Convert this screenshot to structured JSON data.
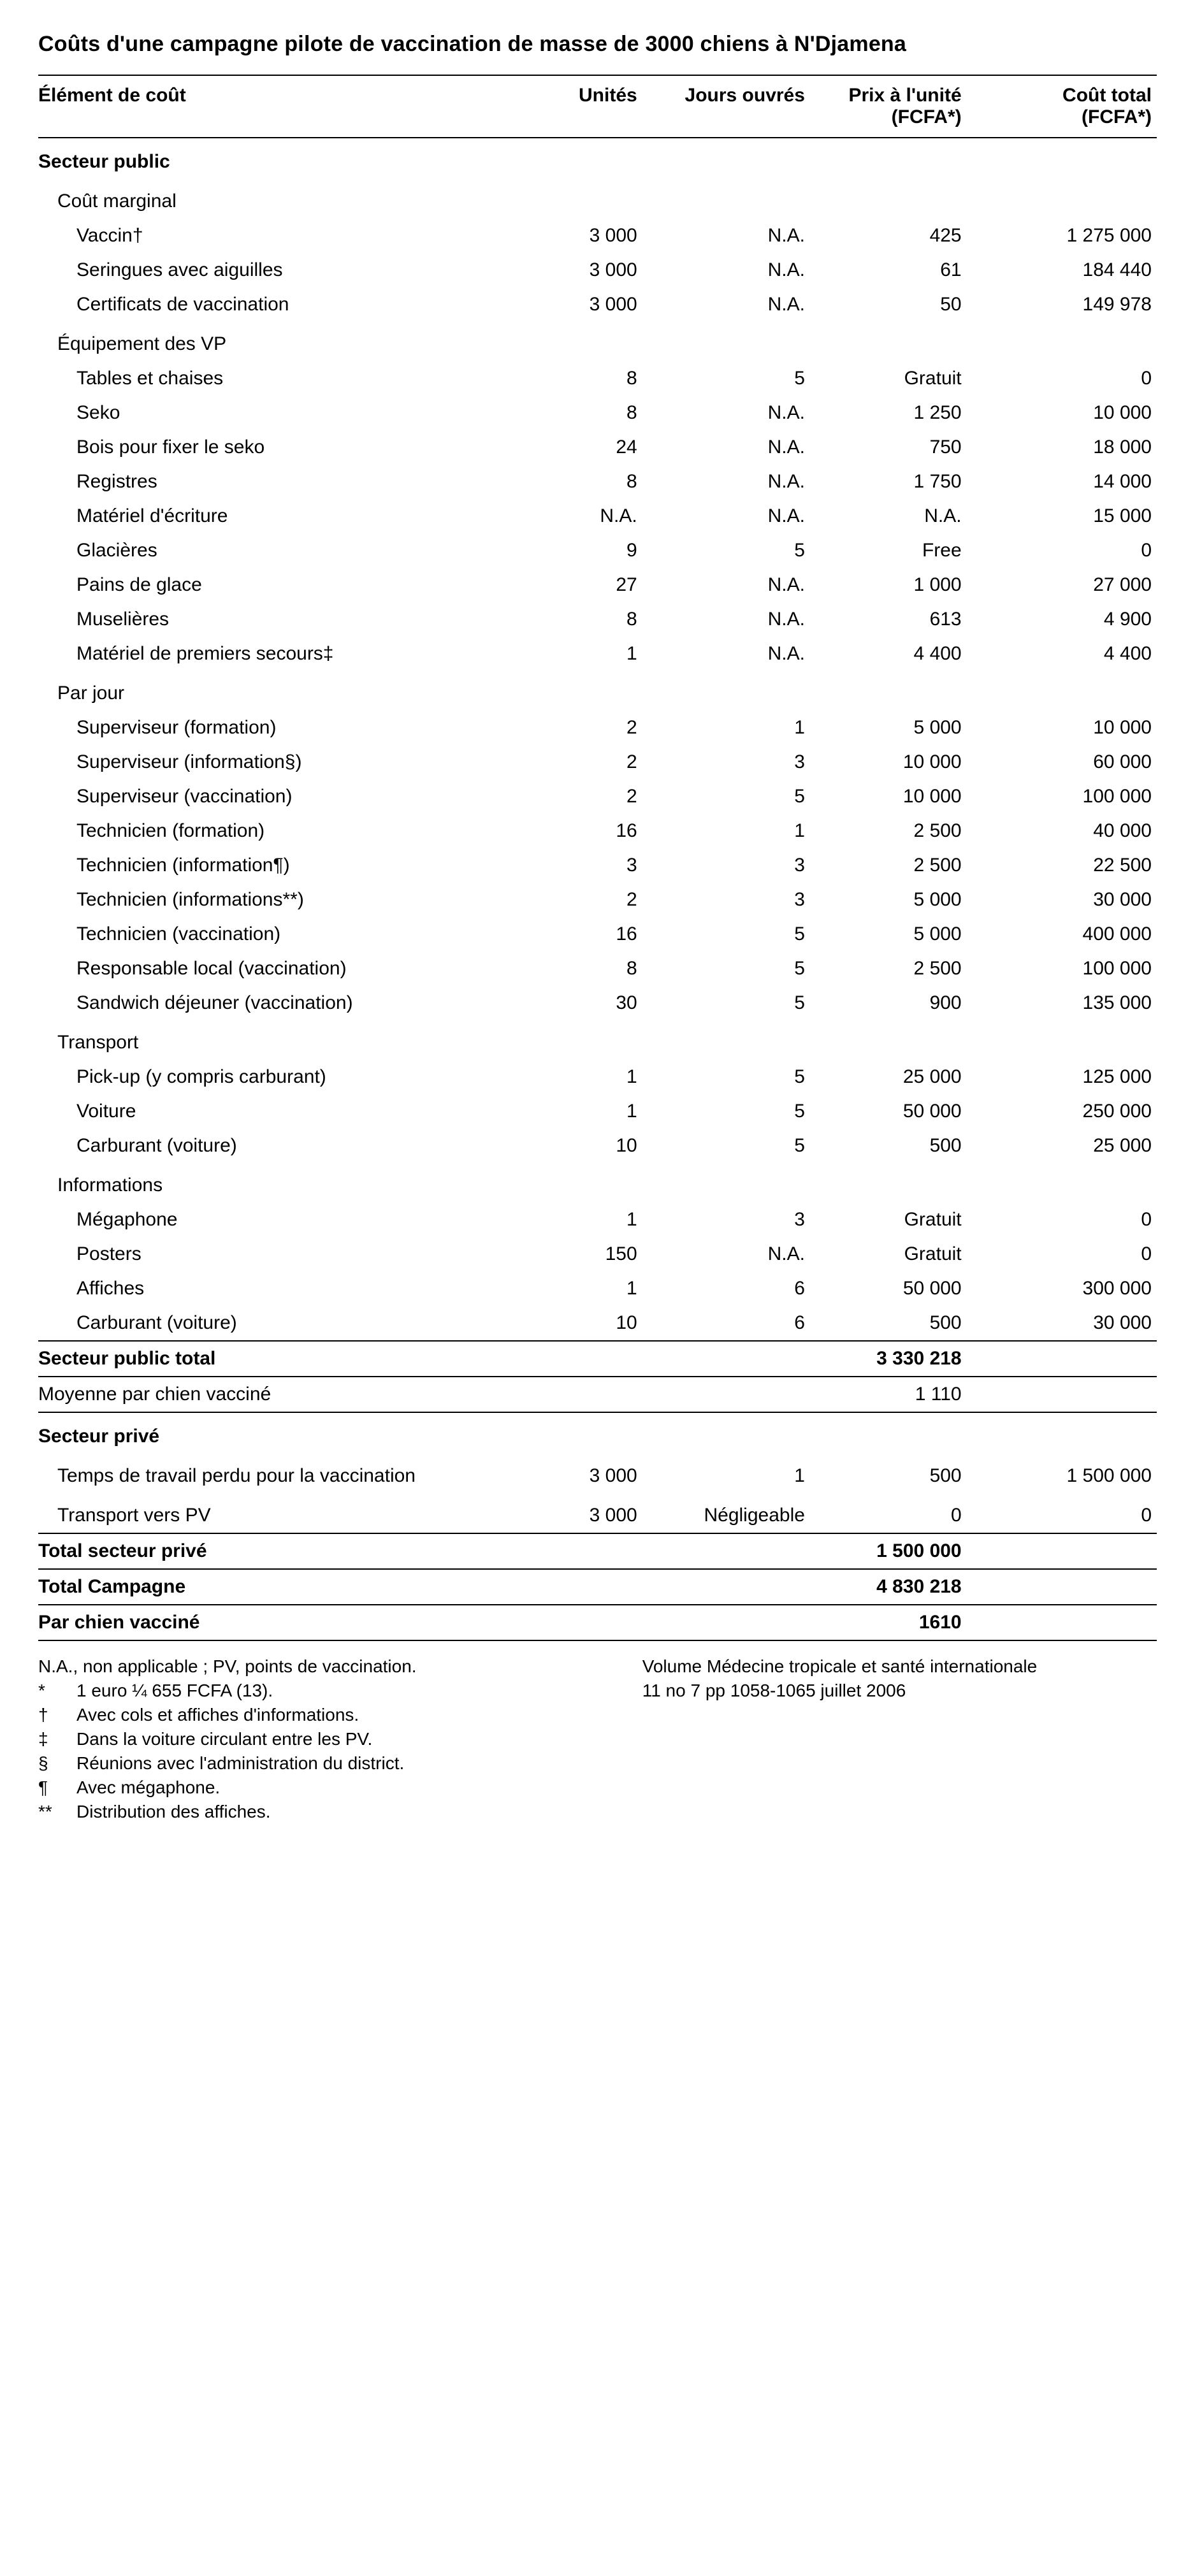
{
  "title": "Coûts d'une campagne pilote de vaccination de masse de 3000 chiens à N'Djamena",
  "headers": {
    "element": "Élément de coût",
    "units": "Unités",
    "days": "Jours ouvrés",
    "price1": "Prix à l'unité",
    "price2": "(FCFA*)",
    "total1": "Coût total",
    "total2": "(FCFA*)"
  },
  "rows": [
    {
      "type": "section",
      "label": "Secteur public"
    },
    {
      "type": "group",
      "label": "Coût marginal"
    },
    {
      "type": "item",
      "label": "Vaccin†",
      "units": "3 000",
      "days": "N.A.",
      "price": "425",
      "total": "1 275 000"
    },
    {
      "type": "item",
      "label": "Seringues avec aiguilles",
      "units": "3 000",
      "days": "N.A.",
      "price": "61",
      "total": "184 440"
    },
    {
      "type": "item",
      "label": "Certificats de vaccination",
      "units": "3 000",
      "days": "N.A.",
      "price": "50",
      "total": "149 978"
    },
    {
      "type": "group",
      "label": "Équipement des VP"
    },
    {
      "type": "item",
      "label": "Tables et chaises",
      "units": "8",
      "days": "5",
      "price": "Gratuit",
      "total": "0"
    },
    {
      "type": "item",
      "label": "Seko",
      "units": "8",
      "days": "N.A.",
      "price": "1 250",
      "total": "10 000"
    },
    {
      "type": "item",
      "label": "Bois pour fixer le seko",
      "units": "24",
      "days": "N.A.",
      "price": "750",
      "total": "18 000"
    },
    {
      "type": "item",
      "label": "Registres",
      "units": "8",
      "days": "N.A.",
      "price": "1 750",
      "total": "14 000"
    },
    {
      "type": "item",
      "label": "Matériel d'écriture",
      "units": "N.A.",
      "days": "N.A.",
      "price": "N.A.",
      "total": "15 000"
    },
    {
      "type": "item",
      "label": "Glacières",
      "units": "9",
      "days": "5",
      "price": "Free",
      "total": "0"
    },
    {
      "type": "item",
      "label": "Pains de glace",
      "units": "27",
      "days": "N.A.",
      "price": "1 000",
      "total": "27 000"
    },
    {
      "type": "item",
      "label": "Muselières",
      "units": "8",
      "days": "N.A.",
      "price": "613",
      "total": "4 900"
    },
    {
      "type": "item",
      "label": "Matériel de premiers secours‡",
      "units": "1",
      "days": "N.A.",
      "price": "4 400",
      "total": "4 400"
    },
    {
      "type": "group",
      "label": "Par jour"
    },
    {
      "type": "item",
      "label": "Superviseur (formation)",
      "units": "2",
      "days": "1",
      "price": "5 000",
      "total": "10 000"
    },
    {
      "type": "item",
      "label": "Superviseur (information§)",
      "units": "2",
      "days": "3",
      "price": "10 000",
      "total": "60 000"
    },
    {
      "type": "item",
      "label": "Superviseur (vaccination)",
      "units": "2",
      "days": "5",
      "price": "10 000",
      "total": "100 000"
    },
    {
      "type": "item",
      "label": "Technicien (formation)",
      "units": "16",
      "days": "1",
      "price": "2 500",
      "total": "40 000"
    },
    {
      "type": "item",
      "label": "Technicien (information¶)",
      "units": "3",
      "days": "3",
      "price": "2 500",
      "total": "22 500"
    },
    {
      "type": "item",
      "label": "Technicien (informations**)",
      "units": "2",
      "days": "3",
      "price": "5 000",
      "total": "30 000"
    },
    {
      "type": "item",
      "label": "Technicien (vaccination)",
      "units": "16",
      "days": "5",
      "price": "5 000",
      "total": "400 000"
    },
    {
      "type": "item",
      "label": "Responsable local (vaccination)",
      "units": "8",
      "days": "5",
      "price": "2 500",
      "total": "100 000"
    },
    {
      "type": "item",
      "label": "Sandwich déjeuner (vaccination)",
      "units": "30",
      "days": "5",
      "price": "900",
      "total": "135 000"
    },
    {
      "type": "group",
      "label": "Transport"
    },
    {
      "type": "item",
      "label": "Pick-up (y compris carburant)",
      "units": "1",
      "days": "5",
      "price": "25 000",
      "total": "125 000"
    },
    {
      "type": "item",
      "label": "Voiture",
      "units": "1",
      "days": "5",
      "price": "50 000",
      "total": "250 000"
    },
    {
      "type": "item",
      "label": "Carburant (voiture)",
      "units": "10",
      "days": "5",
      "price": "500",
      "total": "25 000"
    },
    {
      "type": "group",
      "label": "Informations"
    },
    {
      "type": "item",
      "label": "Mégaphone",
      "units": "1",
      "days": "3",
      "price": "Gratuit",
      "total": "0"
    },
    {
      "type": "item",
      "label": "Posters",
      "units": "150",
      "days": "N.A.",
      "price": "Gratuit",
      "total": "0"
    },
    {
      "type": "item",
      "label": "Affiches",
      "units": "1",
      "days": "6",
      "price": "50 000",
      "total": "300 000"
    },
    {
      "type": "item",
      "label": "Carburant (voiture)",
      "units": "10",
      "days": "6",
      "price": "500",
      "total": "30 000"
    },
    {
      "type": "total",
      "label": "Secteur public total",
      "price": "3 330 218",
      "rule": "both"
    },
    {
      "type": "plain",
      "label": "Moyenne par chien vacciné",
      "price": "1 110",
      "rule": "bot"
    },
    {
      "type": "section",
      "label": "Secteur privé"
    },
    {
      "type": "itemL",
      "label": "Temps de travail perdu pour la vaccination",
      "units": "3 000",
      "days": "1",
      "price": "500",
      "total": "1 500 000"
    },
    {
      "type": "itemL",
      "label": "Transport vers PV",
      "units": "3 000",
      "days": "Négligeable",
      "price": "0",
      "total": "0"
    },
    {
      "type": "total",
      "label": "Total secteur privé",
      "price": "1 500 000",
      "rule": "both"
    },
    {
      "type": "total",
      "label": "Total Campagne",
      "price": "4 830 218",
      "rule": "bot"
    },
    {
      "type": "total",
      "label": "Par chien vacciné",
      "price": "1610",
      "rule": "bot"
    }
  ],
  "footnotes": {
    "lead": "N.A., non applicable ; PV, points de vaccination.",
    "items": [
      {
        "sym": "*",
        "text": "1 euro ¼ 655 FCFA (13)."
      },
      {
        "sym": "†",
        "text": "Avec cols et affiches d'informations."
      },
      {
        "sym": "‡",
        "text": "Dans la voiture circulant entre les PV."
      },
      {
        "sym": "§",
        "text": "Réunions avec l'administration du district."
      },
      {
        "sym": "¶",
        "text": "Avec mégaphone."
      },
      {
        "sym": "**",
        "text": "Distribution des affiches."
      }
    ],
    "right": [
      "Volume Médecine tropicale et santé internationale",
      "11 no 7 pp 1058-1065 juillet 2006"
    ]
  }
}
